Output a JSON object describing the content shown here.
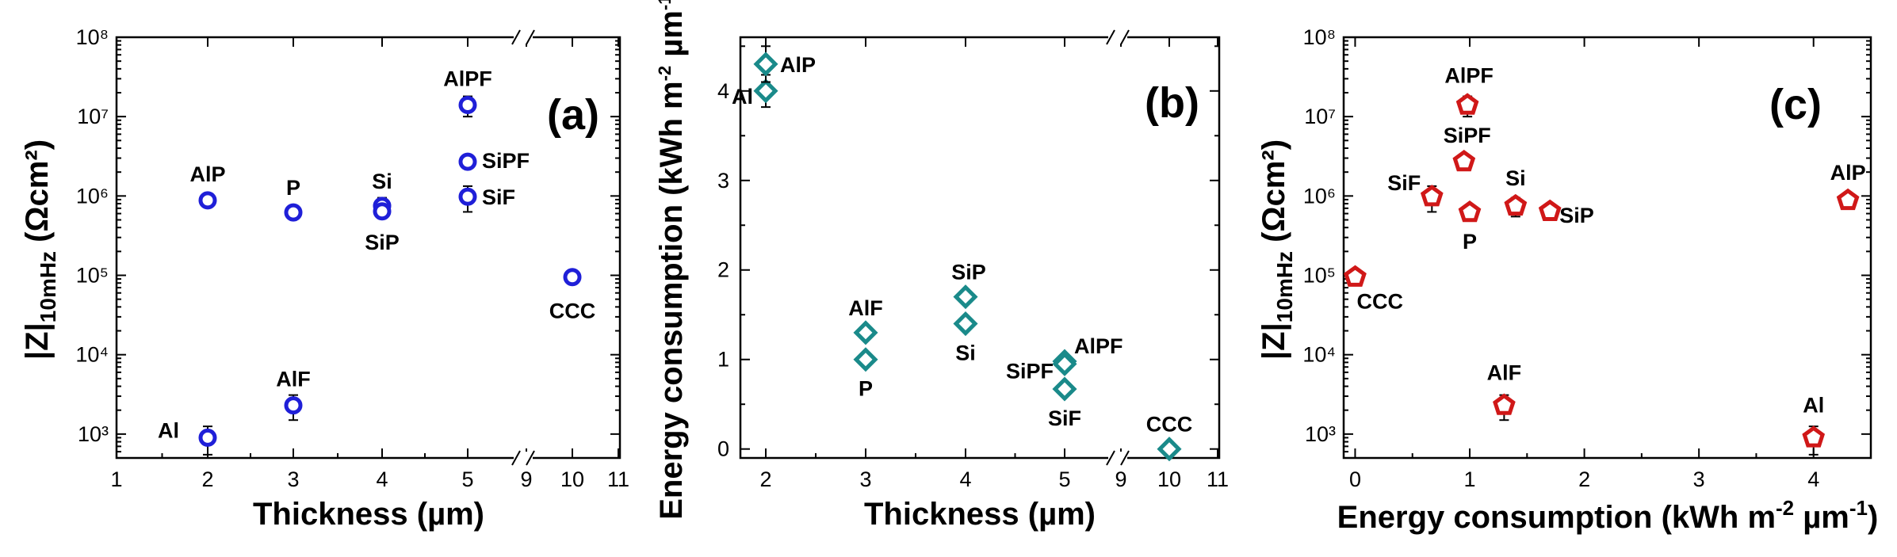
{
  "chart_data": [
    {
      "type": "scatter",
      "panel": "(a)",
      "xlabel": "Thickness (µm)",
      "ylabel_main": "|Z|",
      "ylabel_sub": "10mHz",
      "ylabel_unit": " (Ωcm²)",
      "x_scale": "broken",
      "x_tick_labels": [
        "1",
        "2",
        "3",
        "4",
        "5",
        "9",
        "10",
        "11"
      ],
      "y_scale": "log",
      "ylim": [
        500,
        100000000
      ],
      "y_tick_labels": [
        "10³",
        "10⁴",
        "10⁵",
        "10⁶",
        "10⁷",
        "10⁸"
      ],
      "marker": "circle",
      "color": "#1f1fd8",
      "points": [
        {
          "label": "Al",
          "x": 2,
          "y": 900,
          "err": 350
        },
        {
          "label": "AlP",
          "x": 2,
          "y": 880000
        },
        {
          "label": "AlF",
          "x": 3,
          "y": 2300,
          "err": 800
        },
        {
          "label": "P",
          "x": 3,
          "y": 620000
        },
        {
          "label": "Si",
          "x": 4,
          "y": 750000,
          "err": 200000
        },
        {
          "label": "SiP",
          "x": 4,
          "y": 640000
        },
        {
          "label": "AlPF",
          "x": 5,
          "y": 14000000,
          "err": 4000000
        },
        {
          "label": "SiPF",
          "x": 5,
          "y": 2700000
        },
        {
          "label": "SiF",
          "x": 5,
          "y": 980000,
          "err": 350000
        },
        {
          "label": "CCC",
          "x": 10,
          "y": 95000
        }
      ]
    },
    {
      "type": "scatter",
      "panel": "(b)",
      "xlabel": "Thickness (µm)",
      "ylabel_main": "Energy consumption (kWh m",
      "ylabel_sup": "-2",
      "ylabel_mid": " µm",
      "ylabel_sup2": "-1",
      "ylabel_end": ")",
      "x_scale": "broken",
      "x_tick_labels": [
        "2",
        "3",
        "4",
        "5",
        "9",
        "10",
        "11"
      ],
      "y_scale": "linear",
      "ylim": [
        -0.1,
        4.6
      ],
      "y_tick_labels": [
        "0",
        "1",
        "2",
        "3",
        "4"
      ],
      "marker": "diamond",
      "color": "#1a8a8a",
      "points": [
        {
          "label": "Al",
          "x": 2,
          "y": 4.0,
          "err": 0.18
        },
        {
          "label": "AlP",
          "x": 2,
          "y": 4.3,
          "err": 0.2
        },
        {
          "label": "AlF",
          "x": 3,
          "y": 1.3
        },
        {
          "label": "P",
          "x": 3,
          "y": 1.0
        },
        {
          "label": "SiP",
          "x": 4,
          "y": 1.7
        },
        {
          "label": "Si",
          "x": 4,
          "y": 1.4
        },
        {
          "label": "AlPF",
          "x": 5,
          "y": 0.98,
          "err": 0.05
        },
        {
          "label": "SiPF",
          "x": 5,
          "y": 0.95
        },
        {
          "label": "SiF",
          "x": 5,
          "y": 0.67
        },
        {
          "label": "CCC",
          "x": 10,
          "y": 0
        }
      ]
    },
    {
      "type": "scatter",
      "panel": "(c)",
      "xlabel_main": "Energy consumption (kWh m",
      "xlabel_sup": "-2",
      "xlabel_mid": " µm",
      "xlabel_sup2": "-1",
      "xlabel_end": ")",
      "ylabel_main": "|Z|",
      "ylabel_sub": "10mHz",
      "ylabel_unit": " (Ωcm²)",
      "x_scale": "linear",
      "xlim": [
        -0.1,
        4.5
      ],
      "x_tick_labels": [
        "0",
        "1",
        "2",
        "3",
        "4"
      ],
      "y_scale": "log",
      "ylim": [
        500,
        100000000
      ],
      "y_tick_labels": [
        "10³",
        "10⁴",
        "10⁵",
        "10⁶",
        "10⁷",
        "10⁸"
      ],
      "marker": "pentagon",
      "color": "#d01818",
      "points": [
        {
          "label": "CCC",
          "x": 0,
          "y": 95000
        },
        {
          "label": "SiF",
          "x": 0.67,
          "y": 980000,
          "err": 350000
        },
        {
          "label": "SiPF",
          "x": 0.95,
          "y": 2700000
        },
        {
          "label": "AlPF",
          "x": 0.98,
          "y": 14000000,
          "err": 4000000
        },
        {
          "label": "P",
          "x": 1.0,
          "y": 620000
        },
        {
          "label": "AlF",
          "x": 1.3,
          "y": 2300,
          "err": 800
        },
        {
          "label": "Si",
          "x": 1.4,
          "y": 750000,
          "err": 200000
        },
        {
          "label": "SiP",
          "x": 1.7,
          "y": 640000
        },
        {
          "label": "Al",
          "x": 4.0,
          "y": 900,
          "err": 350
        },
        {
          "label": "AlP",
          "x": 4.3,
          "y": 880000
        }
      ]
    }
  ]
}
